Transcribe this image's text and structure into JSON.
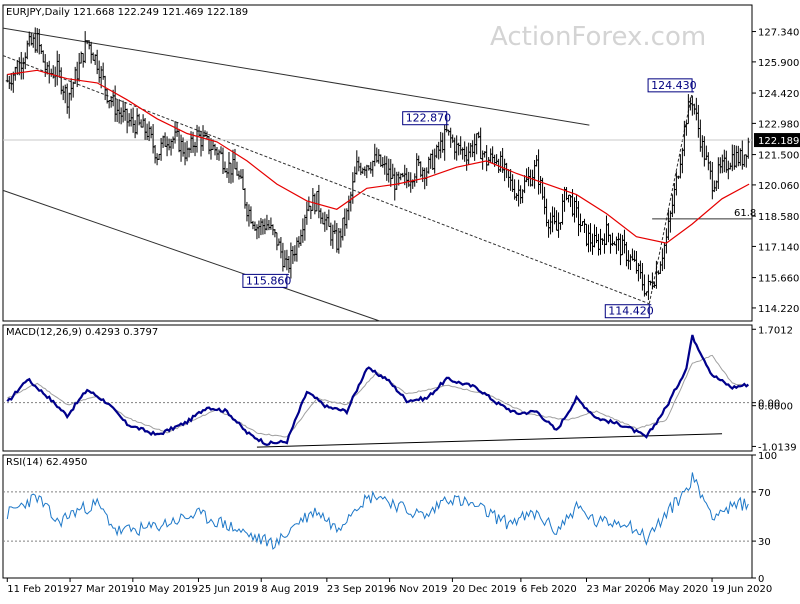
{
  "watermark": "ActionForex.com",
  "colors": {
    "price": "#000000",
    "ma": "#e60000",
    "macd": "#00008b",
    "signal": "#a0a0a0",
    "rsi": "#1e78c8",
    "level_box": "#000080",
    "axis": "#000000",
    "dotted": "#808080"
  },
  "chart_data": [
    {
      "type": "candlestick",
      "title": "EURJPY,Daily  121.668 122.249 121.469 122.189",
      "symbol": "EURJPY",
      "timeframe": "Daily",
      "last_bar": {
        "open": 121.668,
        "high": 122.249,
        "low": 121.469,
        "close": 122.189
      },
      "current_price_label": "122.189",
      "ylim": [
        113.6,
        128.6
      ],
      "y_ticks": [
        "127.340",
        "125.900",
        "124.420",
        "122.980",
        "121.500",
        "120.060",
        "118.580",
        "117.140",
        "115.660",
        "114.220"
      ],
      "key_levels": [
        {
          "label": "115.860",
          "value": 115.86,
          "date": "2019-08-26"
        },
        {
          "label": "122.870",
          "value": 122.87,
          "date": "2019-12-16"
        },
        {
          "label": "114.420",
          "value": 114.42,
          "date": "2020-05-06"
        },
        {
          "label": "124.430",
          "value": 124.43,
          "date": "2020-06-05"
        }
      ],
      "fib_label": "61.8",
      "fib_value": 118.45,
      "moving_average_note": "red moving average line",
      "price_path": [
        [
          "2019-02-11",
          125.0
        ],
        [
          "2019-02-18",
          125.6
        ],
        [
          "2019-02-25",
          126.6
        ],
        [
          "2019-03-04",
          126.9
        ],
        [
          "2019-03-11",
          125.3
        ],
        [
          "2019-03-18",
          125.5
        ],
        [
          "2019-03-25",
          124.2
        ],
        [
          "2019-04-01",
          125.4
        ],
        [
          "2019-04-08",
          126.9
        ],
        [
          "2019-04-15",
          125.9
        ],
        [
          "2019-04-22",
          124.4
        ],
        [
          "2019-04-29",
          123.6
        ],
        [
          "2019-05-06",
          123.1
        ],
        [
          "2019-05-13",
          122.9
        ],
        [
          "2019-05-20",
          122.6
        ],
        [
          "2019-05-27",
          121.5
        ],
        [
          "2019-06-03",
          122.3
        ],
        [
          "2019-06-10",
          122.2
        ],
        [
          "2019-06-17",
          121.5
        ],
        [
          "2019-06-24",
          122.4
        ],
        [
          "2019-07-01",
          122.0
        ],
        [
          "2019-07-08",
          121.7
        ],
        [
          "2019-07-15",
          121.0
        ],
        [
          "2019-07-22",
          120.7
        ],
        [
          "2019-07-29",
          119.0
        ],
        [
          "2019-08-05",
          118.1
        ],
        [
          "2019-08-12",
          118.2
        ],
        [
          "2019-08-19",
          117.4
        ],
        [
          "2019-08-26",
          116.1
        ],
        [
          "2019-09-02",
          117.3
        ],
        [
          "2019-09-09",
          119.1
        ],
        [
          "2019-09-16",
          119.3
        ],
        [
          "2019-09-23",
          118.1
        ],
        [
          "2019-09-30",
          117.3
        ],
        [
          "2019-10-07",
          118.6
        ],
        [
          "2019-10-14",
          120.9
        ],
        [
          "2019-10-21",
          121.1
        ],
        [
          "2019-10-28",
          121.2
        ],
        [
          "2019-11-04",
          120.7
        ],
        [
          "2019-11-11",
          120.1
        ],
        [
          "2019-11-18",
          120.3
        ],
        [
          "2019-11-25",
          120.9
        ],
        [
          "2019-12-02",
          120.8
        ],
        [
          "2019-12-09",
          121.5
        ],
        [
          "2019-12-16",
          122.5
        ],
        [
          "2019-12-23",
          121.8
        ],
        [
          "2019-12-30",
          121.6
        ],
        [
          "2020-01-06",
          122.1
        ],
        [
          "2020-01-13",
          121.2
        ],
        [
          "2020-01-20",
          121.4
        ],
        [
          "2020-01-27",
          120.4
        ],
        [
          "2020-02-03",
          119.7
        ],
        [
          "2020-02-10",
          120.2
        ],
        [
          "2020-02-17",
          120.9
        ],
        [
          "2020-02-24",
          118.6
        ],
        [
          "2020-03-02",
          117.9
        ],
        [
          "2020-03-09",
          119.8
        ],
        [
          "2020-03-16",
          118.6
        ],
        [
          "2020-03-23",
          117.6
        ],
        [
          "2020-03-30",
          117.2
        ],
        [
          "2020-04-06",
          117.8
        ],
        [
          "2020-04-13",
          117.3
        ],
        [
          "2020-04-20",
          116.8
        ],
        [
          "2020-04-27",
          116.1
        ],
        [
          "2020-05-04",
          115.0
        ],
        [
          "2020-05-11",
          115.9
        ],
        [
          "2020-05-18",
          117.5
        ],
        [
          "2020-05-25",
          120.2
        ],
        [
          "2020-06-01",
          123.3
        ],
        [
          "2020-06-05",
          124.2
        ],
        [
          "2020-06-12",
          121.9
        ],
        [
          "2020-06-19",
          120.2
        ],
        [
          "2020-06-26",
          120.8
        ],
        [
          "2020-07-03",
          121.4
        ],
        [
          "2020-07-10",
          121.3
        ],
        [
          "2020-07-15",
          122.19
        ]
      ],
      "ma_path": [
        [
          "2019-02-11",
          125.3
        ],
        [
          "2019-03-04",
          125.5
        ],
        [
          "2019-03-25",
          125.1
        ],
        [
          "2019-04-15",
          124.9
        ],
        [
          "2019-05-06",
          124.1
        ],
        [
          "2019-05-27",
          123.2
        ],
        [
          "2019-06-17",
          122.5
        ],
        [
          "2019-07-08",
          122.1
        ],
        [
          "2019-07-29",
          121.2
        ],
        [
          "2019-08-19",
          120.1
        ],
        [
          "2019-09-09",
          119.3
        ],
        [
          "2019-09-30",
          118.9
        ],
        [
          "2019-10-21",
          119.9
        ],
        [
          "2019-11-11",
          120.1
        ],
        [
          "2019-12-02",
          120.4
        ],
        [
          "2019-12-23",
          120.9
        ],
        [
          "2020-01-13",
          121.2
        ],
        [
          "2020-02-03",
          120.6
        ],
        [
          "2020-02-24",
          120.1
        ],
        [
          "2020-03-16",
          119.6
        ],
        [
          "2020-04-06",
          118.7
        ],
        [
          "2020-04-27",
          117.6
        ],
        [
          "2020-05-18",
          117.3
        ],
        [
          "2020-06-05",
          118.2
        ],
        [
          "2020-06-26",
          119.4
        ],
        [
          "2020-07-15",
          120.1
        ]
      ]
    },
    {
      "type": "line",
      "title": "MACD(12,26,9) 0.4293 0.3797",
      "ylim": [
        -1.12,
        1.8
      ],
      "y_ticks": [
        "1.7012",
        "0.00",
        "0.0000",
        "-1.0139"
      ],
      "series": [
        {
          "name": "MACD",
          "values": [
            [
              "2019-02-11",
              0.0
            ],
            [
              "2019-02-25",
              0.55
            ],
            [
              "2019-03-11",
              0.15
            ],
            [
              "2019-03-25",
              -0.3
            ],
            [
              "2019-04-08",
              0.3
            ],
            [
              "2019-04-22",
              0.0
            ],
            [
              "2019-05-06",
              -0.5
            ],
            [
              "2019-05-27",
              -0.75
            ],
            [
              "2019-06-17",
              -0.45
            ],
            [
              "2019-07-01",
              -0.1
            ],
            [
              "2019-07-15",
              -0.2
            ],
            [
              "2019-07-29",
              -0.7
            ],
            [
              "2019-08-12",
              -0.95
            ],
            [
              "2019-08-26",
              -0.9
            ],
            [
              "2019-09-09",
              0.25
            ],
            [
              "2019-09-23",
              -0.1
            ],
            [
              "2019-10-07",
              -0.2
            ],
            [
              "2019-10-21",
              0.8
            ],
            [
              "2019-11-04",
              0.55
            ],
            [
              "2019-11-18",
              0.05
            ],
            [
              "2019-12-02",
              0.1
            ],
            [
              "2019-12-16",
              0.55
            ],
            [
              "2020-01-06",
              0.35
            ],
            [
              "2020-01-20",
              0.0
            ],
            [
              "2020-02-03",
              -0.25
            ],
            [
              "2020-02-17",
              -0.2
            ],
            [
              "2020-03-02",
              -0.65
            ],
            [
              "2020-03-16",
              0.1
            ],
            [
              "2020-03-30",
              -0.35
            ],
            [
              "2020-04-20",
              -0.55
            ],
            [
              "2020-05-04",
              -0.8
            ],
            [
              "2020-05-18",
              -0.1
            ],
            [
              "2020-06-01",
              0.8
            ],
            [
              "2020-06-05",
              1.55
            ],
            [
              "2020-06-19",
              0.65
            ],
            [
              "2020-07-03",
              0.35
            ],
            [
              "2020-07-15",
              0.43
            ]
          ]
        },
        {
          "name": "Signal",
          "values": [
            [
              "2019-02-11",
              0.1
            ],
            [
              "2019-03-04",
              0.45
            ],
            [
              "2019-03-25",
              -0.05
            ],
            [
              "2019-04-15",
              0.15
            ],
            [
              "2019-05-06",
              -0.35
            ],
            [
              "2019-06-03",
              -0.7
            ],
            [
              "2019-07-08",
              -0.15
            ],
            [
              "2019-08-05",
              -0.7
            ],
            [
              "2019-08-26",
              -0.8
            ],
            [
              "2019-09-16",
              0.1
            ],
            [
              "2019-10-07",
              -0.05
            ],
            [
              "2019-10-28",
              0.7
            ],
            [
              "2019-11-18",
              0.2
            ],
            [
              "2019-12-16",
              0.4
            ],
            [
              "2020-01-13",
              0.2
            ],
            [
              "2020-02-10",
              -0.25
            ],
            [
              "2020-03-09",
              -0.4
            ],
            [
              "2020-03-30",
              -0.2
            ],
            [
              "2020-04-27",
              -0.6
            ],
            [
              "2020-05-18",
              -0.4
            ],
            [
              "2020-06-05",
              0.9
            ],
            [
              "2020-06-19",
              1.1
            ],
            [
              "2020-07-03",
              0.45
            ],
            [
              "2020-07-15",
              0.38
            ]
          ]
        }
      ]
    },
    {
      "type": "line",
      "title": "RSI(14) 62.4950",
      "ylim": [
        0,
        100
      ],
      "y_ticks": [
        "100",
        "70",
        "30",
        "0"
      ],
      "series": [
        {
          "name": "RSI",
          "values": [
            [
              "2019-02-11",
              52
            ],
            [
              "2019-02-25",
              62
            ],
            [
              "2019-03-04",
              66
            ],
            [
              "2019-03-18",
              45
            ],
            [
              "2019-04-01",
              55
            ],
            [
              "2019-04-15",
              60
            ],
            [
              "2019-04-29",
              38
            ],
            [
              "2019-05-20",
              40
            ],
            [
              "2019-06-10",
              47
            ],
            [
              "2019-06-24",
              52
            ],
            [
              "2019-07-15",
              43
            ],
            [
              "2019-08-05",
              32
            ],
            [
              "2019-08-19",
              28
            ],
            [
              "2019-09-02",
              45
            ],
            [
              "2019-09-16",
              55
            ],
            [
              "2019-09-30",
              40
            ],
            [
              "2019-10-14",
              60
            ],
            [
              "2019-10-28",
              68
            ],
            [
              "2019-11-18",
              55
            ],
            [
              "2019-12-02",
              50
            ],
            [
              "2019-12-16",
              66
            ],
            [
              "2020-01-06",
              58
            ],
            [
              "2020-01-27",
              45
            ],
            [
              "2020-02-17",
              52
            ],
            [
              "2020-03-02",
              38
            ],
            [
              "2020-03-16",
              58
            ],
            [
              "2020-03-30",
              45
            ],
            [
              "2020-04-20",
              46
            ],
            [
              "2020-05-04",
              32
            ],
            [
              "2020-05-18",
              52
            ],
            [
              "2020-06-01",
              72
            ],
            [
              "2020-06-05",
              82
            ],
            [
              "2020-06-19",
              52
            ],
            [
              "2020-07-03",
              57
            ],
            [
              "2020-07-15",
              62.5
            ]
          ]
        }
      ]
    }
  ],
  "x_axis": {
    "tick_labels": [
      "11 Feb 2019",
      "27 Mar 2019",
      "10 May 2019",
      "25 Jun 2019",
      "8 Aug 2019",
      "23 Sep 2019",
      "6 Nov 2019",
      "20 Dec 2019",
      "6 Feb 2020",
      "23 Mar 2020",
      "6 May 2020",
      "19 Jun 2020"
    ],
    "tick_dates": [
      "2019-02-11",
      "2019-03-27",
      "2019-05-10",
      "2019-06-25",
      "2019-08-08",
      "2019-09-23",
      "2019-11-06",
      "2019-12-20",
      "2020-02-06",
      "2020-03-23",
      "2020-05-06",
      "2020-06-19"
    ],
    "range": [
      "2019-02-08",
      "2020-07-17"
    ]
  }
}
